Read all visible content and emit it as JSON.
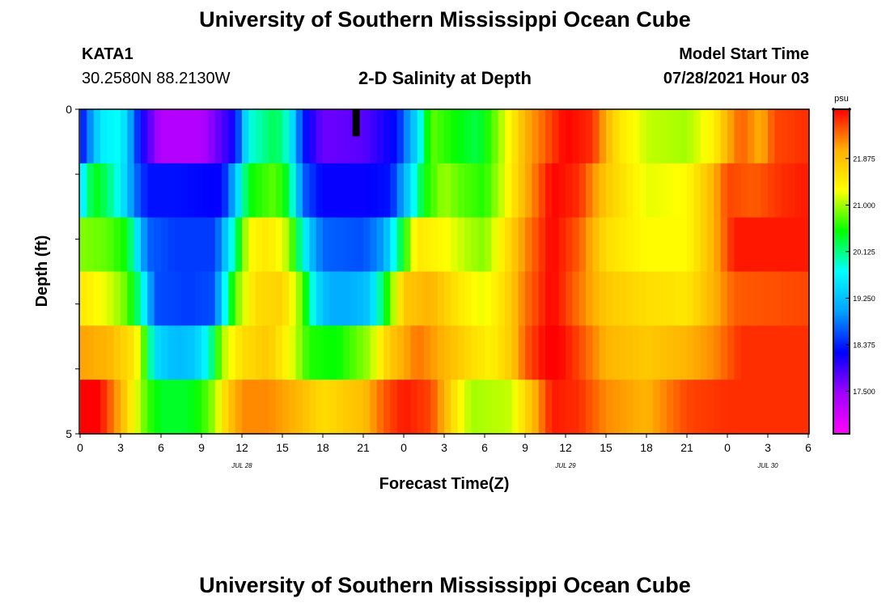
{
  "header": {
    "title": "University of Southern Mississippi Ocean Cube",
    "station": "KATA1",
    "coordinates": "30.2580N  88.2130W",
    "subtitle": "2-D Salinity at Depth",
    "model_start_label": "Model Start Time",
    "model_start_value": "07/28/2021 Hour 03"
  },
  "footer": {
    "title": "University of Southern Mississippi Ocean Cube"
  },
  "chart_data": {
    "type": "heatmap",
    "title": "2-D Salinity at Depth",
    "xlabel": "Forecast Time(Z)",
    "ylabel": "Depth (ft)",
    "x_tick_labels": [
      "0",
      "3",
      "6",
      "9",
      "12",
      "15",
      "18",
      "21",
      "0",
      "3",
      "6",
      "9",
      "12",
      "15",
      "18",
      "21",
      "0",
      "3",
      "6"
    ],
    "date_labels": [
      {
        "label": "JUL 28",
        "tick_index": 4
      },
      {
        "label": "JUL 29",
        "tick_index": 12
      },
      {
        "label": "JUL 30",
        "tick_index": 17
      }
    ],
    "x_range_hours": [
      0,
      54
    ],
    "y_range": [
      0,
      5
    ],
    "y_tick_labels": [
      "0",
      "5"
    ],
    "depth_levels": [
      0,
      1,
      2,
      3,
      4,
      5
    ],
    "units": "psu",
    "colorbar_ticks": [
      "17.500",
      "18.375",
      "19.250",
      "20.125",
      "21.000",
      "21.875"
    ],
    "colorbar_range": [
      16.7,
      22.8
    ],
    "colors": [
      "#ff00ff",
      "#a000ff",
      "#0000ff",
      "#00a0ff",
      "#00ffff",
      "#00ff00",
      "#ffff00",
      "#ffb000",
      "#ff0000"
    ],
    "missing_marker": {
      "hour": 20.5,
      "layer": 0,
      "color": "#000000"
    },
    "layers": [
      {
        "depth": "0-1",
        "knots": [
          [
            0,
            18.2
          ],
          [
            1.5,
            19.6
          ],
          [
            3,
            19.8
          ],
          [
            4.5,
            18.2
          ],
          [
            6,
            17.3
          ],
          [
            9,
            17.3
          ],
          [
            11.5,
            18.2
          ],
          [
            12.5,
            19.8
          ],
          [
            14.5,
            20.3
          ],
          [
            15.5,
            19.8
          ],
          [
            16.5,
            18.4
          ],
          [
            18,
            17.7
          ],
          [
            21,
            17.8
          ],
          [
            23.5,
            18.3
          ],
          [
            25,
            19.5
          ],
          [
            26,
            20.8
          ],
          [
            28,
            20.5
          ],
          [
            29.5,
            20.3
          ],
          [
            30.5,
            20.7
          ],
          [
            32,
            21.4
          ],
          [
            33,
            22.0
          ],
          [
            36,
            22.8
          ],
          [
            38,
            22.6
          ],
          [
            39,
            22.0
          ],
          [
            40,
            21.5
          ],
          [
            42,
            21.1
          ],
          [
            45,
            21.0
          ],
          [
            47,
            21.4
          ],
          [
            48,
            22.0
          ],
          [
            49,
            22.4
          ],
          [
            50.5,
            22.0
          ],
          [
            51.5,
            22.5
          ],
          [
            54,
            22.6
          ]
        ]
      },
      {
        "depth": "1-2",
        "knots": [
          [
            0,
            19.4
          ],
          [
            0.5,
            20.0
          ],
          [
            1,
            20.5
          ],
          [
            2,
            20.2
          ],
          [
            3,
            19.7
          ],
          [
            4,
            18.8
          ],
          [
            5,
            18.3
          ],
          [
            7,
            18.3
          ],
          [
            10.5,
            18.2
          ],
          [
            11.5,
            19.2
          ],
          [
            12.5,
            20.5
          ],
          [
            14.5,
            20.8
          ],
          [
            15.5,
            20.3
          ],
          [
            16.5,
            18.7
          ],
          [
            18,
            18.2
          ],
          [
            21,
            18.2
          ],
          [
            23,
            18.3
          ],
          [
            24.5,
            19.5
          ],
          [
            25.5,
            20.5
          ],
          [
            27,
            21.0
          ],
          [
            28,
            20.8
          ],
          [
            30,
            20.6
          ],
          [
            31.5,
            21.2
          ],
          [
            33,
            22.0
          ],
          [
            35,
            22.8
          ],
          [
            37,
            22.6
          ],
          [
            39,
            21.8
          ],
          [
            42,
            21.2
          ],
          [
            45,
            21.3
          ],
          [
            47,
            22.0
          ],
          [
            48,
            22.5
          ],
          [
            50,
            22.4
          ],
          [
            52,
            22.6
          ],
          [
            54,
            22.7
          ]
        ]
      },
      {
        "depth": "2-3",
        "knots": [
          [
            0,
            20.9
          ],
          [
            2,
            20.8
          ],
          [
            3.5,
            20.5
          ],
          [
            4.5,
            19.2
          ],
          [
            5,
            18.7
          ],
          [
            7,
            18.5
          ],
          [
            10,
            18.5
          ],
          [
            11,
            19.5
          ],
          [
            12.5,
            21.3
          ],
          [
            14,
            21.5
          ],
          [
            15.5,
            21.0
          ],
          [
            17,
            19.3
          ],
          [
            18,
            18.7
          ],
          [
            21,
            18.6
          ],
          [
            22.5,
            19.0
          ],
          [
            23.5,
            20.0
          ],
          [
            25,
            21.5
          ],
          [
            27,
            21.3
          ],
          [
            29,
            21.0
          ],
          [
            30,
            20.9
          ],
          [
            31.5,
            21.5
          ],
          [
            33,
            22.2
          ],
          [
            35,
            22.8
          ],
          [
            37,
            22.4
          ],
          [
            39,
            21.6
          ],
          [
            42,
            21.3
          ],
          [
            45,
            21.3
          ],
          [
            47,
            22.0
          ],
          [
            48.5,
            22.7
          ],
          [
            54,
            22.7
          ]
        ]
      },
      {
        "depth": "3-4",
        "knots": [
          [
            0,
            21.5
          ],
          [
            2,
            21.2
          ],
          [
            3.5,
            20.8
          ],
          [
            4.5,
            20.0
          ],
          [
            5.5,
            18.6
          ],
          [
            8,
            18.5
          ],
          [
            10,
            18.6
          ],
          [
            10.5,
            19.4
          ],
          [
            11.5,
            20.8
          ],
          [
            13,
            21.6
          ],
          [
            15,
            21.7
          ],
          [
            16.5,
            20.8
          ],
          [
            17.5,
            19.5
          ],
          [
            18.5,
            19.1
          ],
          [
            20,
            19.1
          ],
          [
            21.5,
            19.3
          ],
          [
            22.5,
            20.3
          ],
          [
            24,
            21.8
          ],
          [
            26,
            22.0
          ],
          [
            28,
            21.5
          ],
          [
            30,
            21.2
          ],
          [
            31.5,
            21.6
          ],
          [
            33,
            22.3
          ],
          [
            35,
            22.8
          ],
          [
            37,
            22.3
          ],
          [
            39,
            21.8
          ],
          [
            42,
            21.6
          ],
          [
            45,
            21.5
          ],
          [
            47,
            22.0
          ],
          [
            48.5,
            22.4
          ],
          [
            54,
            22.5
          ]
        ]
      },
      {
        "depth": "4-5",
        "knots": [
          [
            0,
            22.1
          ],
          [
            2,
            22.0
          ],
          [
            4,
            21.5
          ],
          [
            5,
            20.5
          ],
          [
            5.5,
            19.5
          ],
          [
            7,
            19.2
          ],
          [
            8.5,
            19.3
          ],
          [
            9.5,
            19.8
          ],
          [
            10.5,
            21.0
          ],
          [
            12,
            21.6
          ],
          [
            14,
            21.8
          ],
          [
            15.5,
            21.3
          ],
          [
            17,
            20.6
          ],
          [
            19,
            20.5
          ],
          [
            21.5,
            21.0
          ],
          [
            23,
            21.8
          ],
          [
            25,
            22.3
          ],
          [
            27,
            22.0
          ],
          [
            29,
            21.6
          ],
          [
            30.5,
            21.4
          ],
          [
            32,
            21.8
          ],
          [
            33,
            22.4
          ],
          [
            35,
            22.9
          ],
          [
            37,
            22.5
          ],
          [
            39,
            22.0
          ],
          [
            42,
            21.8
          ],
          [
            45,
            22.0
          ],
          [
            47,
            22.2
          ],
          [
            49,
            22.6
          ],
          [
            54,
            22.6
          ]
        ]
      },
      {
        "depth": "5",
        "knots": [
          [
            0,
            23.2
          ],
          [
            1,
            23.0
          ],
          [
            2,
            22.5
          ],
          [
            3,
            22.0
          ],
          [
            4,
            21.3
          ],
          [
            5,
            20.7
          ],
          [
            6,
            20.4
          ],
          [
            8,
            20.4
          ],
          [
            9,
            20.6
          ],
          [
            10,
            21.0
          ],
          [
            11,
            21.8
          ],
          [
            12,
            22.2
          ],
          [
            14,
            22.2
          ],
          [
            16,
            22.0
          ],
          [
            18,
            21.6
          ],
          [
            21,
            21.9
          ],
          [
            22.5,
            22.4
          ],
          [
            24,
            22.7
          ],
          [
            26,
            22.5
          ],
          [
            27,
            22.0
          ],
          [
            28,
            21.4
          ],
          [
            29,
            21.0
          ],
          [
            32,
            21.1
          ],
          [
            33.5,
            21.9
          ],
          [
            35,
            22.7
          ],
          [
            37,
            22.6
          ],
          [
            39,
            22.2
          ],
          [
            42,
            22.0
          ],
          [
            45,
            22.5
          ],
          [
            48,
            22.6
          ],
          [
            54,
            22.6
          ]
        ]
      }
    ]
  }
}
